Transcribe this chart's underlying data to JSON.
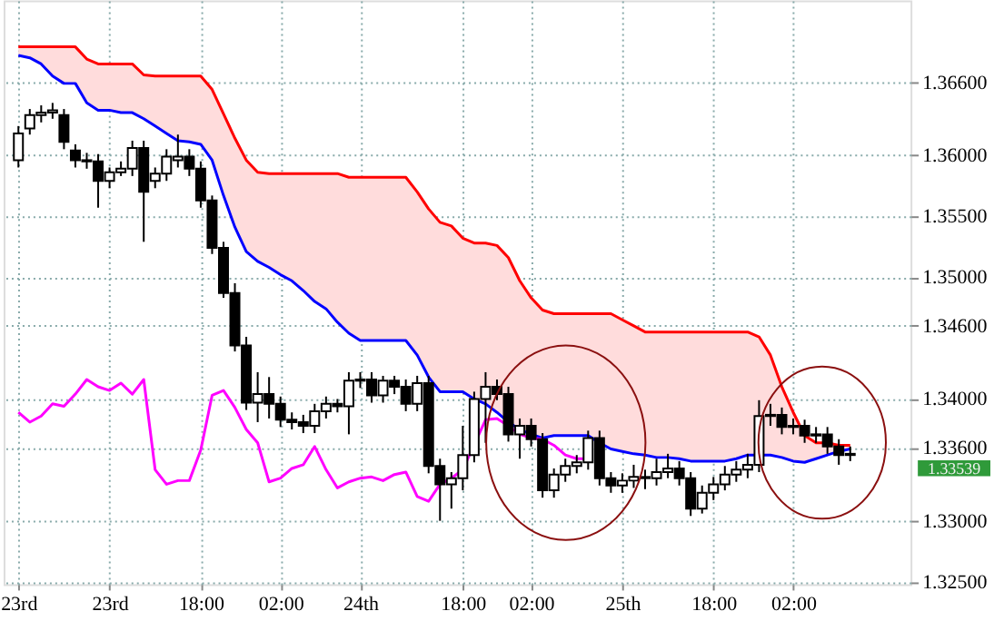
{
  "chart_data": {
    "type": "candlestick",
    "categories": [
      "23rd",
      null,
      null,
      null,
      null,
      null,
      null,
      null,
      "23rd",
      null,
      null,
      null,
      null,
      null,
      null,
      null,
      "18:00",
      null,
      null,
      null,
      null,
      null,
      null,
      "02:00",
      null,
      null,
      null,
      null,
      null,
      null,
      "24th",
      null,
      null,
      null,
      null,
      null,
      null,
      null,
      null,
      "18:00",
      null,
      null,
      null,
      null,
      null,
      "02:00",
      null,
      null,
      null,
      null,
      null,
      null,
      null,
      "25th",
      null,
      null,
      null,
      null,
      null,
      null,
      null,
      "18:00",
      null,
      null,
      null,
      null,
      null,
      null,
      "02:00",
      null,
      null,
      null,
      null,
      null,
      null,
      null,
      null,
      null
    ],
    "ohlc": [
      [
        1.3596,
        1.3624,
        1.359,
        1.3618
      ],
      [
        1.3622,
        1.3638,
        1.3617,
        1.3633
      ],
      [
        1.3633,
        1.3641,
        1.3627,
        1.3635
      ],
      [
        1.3635,
        1.3643,
        1.363,
        1.3637
      ],
      [
        1.3633,
        1.3638,
        1.3605,
        1.3611
      ],
      [
        1.3604,
        1.3609,
        1.359,
        1.3596
      ],
      [
        1.3596,
        1.3602,
        1.3589,
        1.3595
      ],
      [
        1.3595,
        1.3601,
        1.3557,
        1.3579
      ],
      [
        1.3579,
        1.359,
        1.3573,
        1.3586
      ],
      [
        1.3586,
        1.3595,
        1.3583,
        1.3589
      ],
      [
        1.3589,
        1.3612,
        1.3583,
        1.3606
      ],
      [
        1.3606,
        1.3612,
        1.3529,
        1.357
      ],
      [
        1.3579,
        1.359,
        1.3573,
        1.3585
      ],
      [
        1.3585,
        1.3605,
        1.3579,
        1.3599
      ],
      [
        1.3596,
        1.3617,
        1.359,
        1.3599
      ],
      [
        1.3599,
        1.3605,
        1.3583,
        1.3589
      ],
      [
        1.3589,
        1.3595,
        1.3557,
        1.3563
      ],
      [
        1.3563,
        1.3567,
        1.3519,
        1.3524
      ],
      [
        1.3524,
        1.3529,
        1.3483,
        1.3487
      ],
      [
        1.3487,
        1.3495,
        1.3439,
        1.3444
      ],
      [
        1.3444,
        1.3451,
        1.3391,
        1.3397
      ],
      [
        1.3397,
        1.3422,
        1.3381,
        1.3404
      ],
      [
        1.3404,
        1.3418,
        1.3384,
        1.3396
      ],
      [
        1.3396,
        1.3402,
        1.3377,
        1.3383
      ],
      [
        1.3383,
        1.3389,
        1.3375,
        1.3381
      ],
      [
        1.3381,
        1.3387,
        1.3372,
        1.3378
      ],
      [
        1.3378,
        1.3396,
        1.3372,
        1.339
      ],
      [
        1.339,
        1.3402,
        1.3384,
        1.3396
      ],
      [
        1.3396,
        1.34,
        1.3389,
        1.3394
      ],
      [
        1.3394,
        1.3422,
        1.3371,
        1.3415
      ],
      [
        1.3415,
        1.3422,
        1.3409,
        1.3416
      ],
      [
        1.3416,
        1.3422,
        1.3397,
        1.3403
      ],
      [
        1.3403,
        1.3419,
        1.3397,
        1.3415
      ],
      [
        1.3415,
        1.3419,
        1.3404,
        1.341
      ],
      [
        1.341,
        1.3416,
        1.339,
        1.3396
      ],
      [
        1.3396,
        1.3419,
        1.339,
        1.3413
      ],
      [
        1.3413,
        1.3419,
        1.3339,
        1.3345
      ],
      [
        1.3345,
        1.3351,
        1.33,
        1.333
      ],
      [
        1.333,
        1.334,
        1.331,
        1.3335
      ],
      [
        1.3335,
        1.3378,
        1.3325,
        1.3354
      ],
      [
        1.3354,
        1.3406,
        1.3348,
        1.34
      ],
      [
        1.34,
        1.3422,
        1.3364,
        1.341
      ],
      [
        1.341,
        1.3416,
        1.3399,
        1.3404
      ],
      [
        1.3404,
        1.341,
        1.3365,
        1.3371
      ],
      [
        1.3371,
        1.3384,
        1.3351,
        1.3378
      ],
      [
        1.3378,
        1.3384,
        1.3361,
        1.3367
      ],
      [
        1.3367,
        1.3372,
        1.3319,
        1.3325
      ],
      [
        1.3325,
        1.3343,
        1.3319,
        1.3338
      ],
      [
        1.3338,
        1.3351,
        1.3332,
        1.3345
      ],
      [
        1.3345,
        1.3354,
        1.3339,
        1.3348
      ],
      [
        1.3348,
        1.3374,
        1.3342,
        1.3368
      ],
      [
        1.3368,
        1.3374,
        1.3329,
        1.3335
      ],
      [
        1.3335,
        1.334,
        1.3323,
        1.3329
      ],
      [
        1.3329,
        1.3339,
        1.3323,
        1.3333
      ],
      [
        1.3333,
        1.3346,
        1.3327,
        1.3336
      ],
      [
        1.3336,
        1.3342,
        1.3326,
        1.3335
      ],
      [
        1.3335,
        1.3351,
        1.3329,
        1.334
      ],
      [
        1.334,
        1.3355,
        1.3335,
        1.3343
      ],
      [
        1.3343,
        1.3349,
        1.3329,
        1.3335
      ],
      [
        1.3335,
        1.334,
        1.3304,
        1.331
      ],
      [
        1.331,
        1.3329,
        1.3306,
        1.3323
      ],
      [
        1.3323,
        1.3336,
        1.3317,
        1.333
      ],
      [
        1.333,
        1.3345,
        1.3325,
        1.3338
      ],
      [
        1.3338,
        1.3349,
        1.3332,
        1.3342
      ],
      [
        1.3342,
        1.3355,
        1.3335,
        1.3346
      ],
      [
        1.3346,
        1.3399,
        1.334,
        1.3386
      ],
      [
        1.3386,
        1.3396,
        1.3378,
        1.3387
      ],
      [
        1.3387,
        1.3393,
        1.3371,
        1.3377
      ],
      [
        1.3377,
        1.3384,
        1.3371,
        1.3378
      ],
      [
        1.3378,
        1.3383,
        1.3364,
        1.337
      ],
      [
        1.337,
        1.3377,
        1.3364,
        1.3371
      ],
      [
        1.3371,
        1.3377,
        1.3355,
        1.3361
      ],
      [
        1.3361,
        1.3367,
        1.3346,
        1.3354
      ],
      [
        1.3354,
        1.3361,
        1.3349,
        1.3355
      ],
      null,
      null,
      null,
      null
    ],
    "series": [
      {
        "type": "line",
        "color": "#ff0000",
        "values": [
          1.3689,
          1.3689,
          1.3689,
          1.3689,
          1.3689,
          1.3689,
          1.3679,
          1.3675,
          1.3675,
          1.3675,
          1.3675,
          1.3666,
          1.3665,
          1.3665,
          1.3665,
          1.3665,
          1.3665,
          1.3654,
          1.3634,
          1.3614,
          1.3596,
          1.3586,
          1.3585,
          1.3585,
          1.3585,
          1.3585,
          1.3585,
          1.3585,
          1.3585,
          1.3582,
          1.3582,
          1.3582,
          1.3582,
          1.3582,
          1.3582,
          1.357,
          1.3556,
          1.3545,
          1.3542,
          1.3532,
          1.3528,
          1.3528,
          1.3526,
          1.3516,
          1.3497,
          1.3483,
          1.3473,
          1.347,
          1.347,
          1.347,
          1.347,
          1.347,
          1.347,
          1.3465,
          1.346,
          1.3455,
          1.3455,
          1.3455,
          1.3455,
          1.3455,
          1.3455,
          1.3455,
          1.3455,
          1.3455,
          1.3455,
          1.3451,
          1.3436,
          1.341,
          1.3389,
          1.337,
          1.3364,
          1.3364,
          1.3362,
          1.3362,
          null,
          null,
          null,
          null
        ],
        "lower": [
          1.3682,
          1.368,
          1.3675,
          1.3665,
          1.3659,
          1.3659,
          1.3643,
          1.3637,
          1.3637,
          1.3635,
          1.3635,
          1.363,
          1.3624,
          1.3618,
          1.3612,
          1.3611,
          1.3609,
          1.3596,
          1.3567,
          1.3541,
          1.3521,
          1.3513,
          1.3508,
          1.3502,
          1.3497,
          1.3489,
          1.348,
          1.3474,
          1.3463,
          1.3454,
          1.3448,
          1.3448,
          1.3448,
          1.3448,
          1.3448,
          1.3436,
          1.3418,
          1.3406,
          1.3406,
          1.3406,
          1.34,
          1.3396,
          1.3389,
          1.3381,
          1.3375,
          1.3371,
          1.3368,
          1.337,
          1.337,
          1.337,
          1.337,
          1.3364,
          1.3359,
          1.3357,
          1.3355,
          1.3354,
          1.3352,
          1.3352,
          1.3351,
          1.3349,
          1.3349,
          1.3349,
          1.3349,
          1.3351,
          1.3354,
          1.3354,
          1.3354,
          1.3352,
          1.3349,
          1.3348,
          1.3351,
          1.3354,
          1.3357,
          1.3359,
          null,
          null,
          null,
          null
        ],
        "upper": [
          1.3689,
          1.3689,
          1.3689,
          1.3689,
          1.3689,
          1.3689,
          1.3679,
          1.3675,
          1.3675,
          1.3675,
          1.3675,
          1.3666,
          1.3665,
          1.3665,
          1.3665,
          1.3665,
          1.3665,
          1.3654,
          1.3634,
          1.3614,
          1.3596,
          1.3586,
          1.3585,
          1.3585,
          1.3585,
          1.3585,
          1.3585,
          1.3585,
          1.3585,
          1.3582,
          1.3582,
          1.3582,
          1.3582,
          1.3582,
          1.3582,
          1.357,
          1.3556,
          1.3545,
          1.3542,
          1.3532,
          1.3528,
          1.3528,
          1.3526,
          1.3516,
          1.3497,
          1.3483,
          1.3473,
          1.347,
          1.347,
          1.347,
          1.347,
          1.347,
          1.347,
          1.3465,
          1.346,
          1.3455,
          1.3455,
          1.3455,
          1.3455,
          1.3455,
          1.3455,
          1.3455,
          1.3455,
          1.3455,
          1.3455,
          1.3451,
          1.3436,
          1.341,
          1.3389,
          1.337,
          1.3364,
          1.3364,
          1.3362,
          1.3362,
          null,
          null,
          null,
          null
        ]
      },
      {
        "type": "line",
        "color": "#0000ff",
        "values": [
          1.3682,
          1.368,
          1.3675,
          1.3665,
          1.3659,
          1.3659,
          1.3643,
          1.3637,
          1.3637,
          1.3635,
          1.3635,
          1.363,
          1.3624,
          1.3618,
          1.3612,
          1.3611,
          1.3609,
          1.3596,
          1.3567,
          1.3541,
          1.3521,
          1.3513,
          1.3508,
          1.3502,
          1.3497,
          1.3489,
          1.348,
          1.3474,
          1.3463,
          1.3454,
          1.3448,
          1.3448,
          1.3448,
          1.3448,
          1.3448,
          1.3436,
          1.3418,
          1.3406,
          1.3406,
          1.3406,
          1.34,
          1.3396,
          1.3389,
          1.3381,
          1.3375,
          1.3371,
          1.3368,
          1.337,
          1.337,
          1.337,
          1.337,
          1.3364,
          1.3359,
          1.3357,
          1.3355,
          1.3354,
          1.3352,
          1.3352,
          1.3351,
          1.3349,
          1.3349,
          1.3349,
          1.3349,
          1.3351,
          1.3354,
          1.3354,
          1.3354,
          1.3352,
          1.3349,
          1.3348,
          1.3351,
          1.3354,
          1.3357,
          1.3359,
          null,
          null,
          null,
          null
        ]
      },
      {
        "type": "line",
        "color": "#ff00ff",
        "values": [
          1.3389,
          1.3381,
          1.3386,
          1.3396,
          1.3394,
          1.3404,
          1.3416,
          1.341,
          1.3407,
          1.3413,
          1.3404,
          1.3416,
          1.3342,
          1.333,
          1.3333,
          1.3333,
          1.3358,
          1.3403,
          1.3407,
          1.3393,
          1.3375,
          1.3364,
          1.3332,
          1.3335,
          1.3343,
          1.3346,
          1.3361,
          1.3342,
          1.3327,
          1.3332,
          1.3335,
          1.3336,
          1.3333,
          1.3338,
          1.334,
          1.332,
          1.3316,
          1.333,
          1.3335,
          1.3342,
          null,
          1.3383,
          1.3384,
          1.3378,
          1.3371,
          1.3368,
          1.3367,
          1.3362,
          1.3354,
          1.3351,
          1.3351,
          null,
          null,
          null,
          null,
          null,
          null,
          null,
          null,
          null,
          null,
          null,
          null,
          null,
          null,
          null,
          null,
          null,
          null,
          null,
          null,
          null,
          null,
          null,
          null,
          null,
          null,
          null
        ]
      }
    ],
    "ylim": [
      1.3248,
      1.3727
    ],
    "yticks": [
      {
        "value": 1.366,
        "label": "1.36600"
      },
      {
        "value": 1.36,
        "label": "1.36000"
      },
      {
        "value": 1.355,
        "label": "1.35500"
      },
      {
        "value": 1.35,
        "label": "1.35000"
      },
      {
        "value": 1.346,
        "label": "1.34600"
      },
      {
        "value": 1.34,
        "label": "1.34000"
      },
      {
        "value": 1.336,
        "label": "1.33600"
      },
      {
        "value": 1.33,
        "label": "1.33000"
      },
      {
        "value": 1.325,
        "label": "1.32500"
      }
    ],
    "grid": true,
    "annotations": [
      "1.33539"
    ]
  }
}
